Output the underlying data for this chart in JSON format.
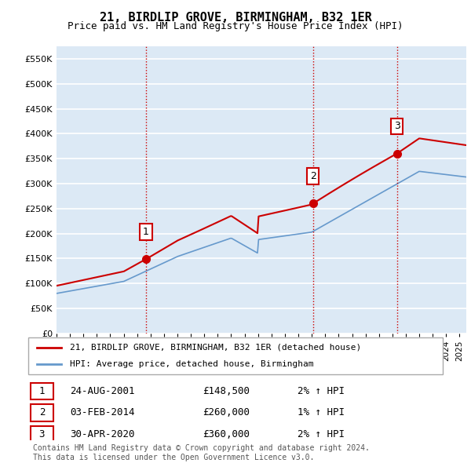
{
  "title": "21, BIRDLIP GROVE, BIRMINGHAM, B32 1ER",
  "subtitle": "Price paid vs. HM Land Registry's House Price Index (HPI)",
  "xlabel": "",
  "ylabel": "",
  "ylim": [
    0,
    575000
  ],
  "yticks": [
    0,
    50000,
    100000,
    150000,
    200000,
    250000,
    300000,
    350000,
    400000,
    450000,
    500000,
    550000
  ],
  "bg_color": "#dce9f5",
  "plot_bg": "#dce9f5",
  "grid_color": "#ffffff",
  "red_line_color": "#cc0000",
  "blue_line_color": "#6699cc",
  "sale_marker_color": "#cc0000",
  "sale_points": [
    {
      "date_num": 2001.65,
      "value": 148500,
      "label": "1"
    },
    {
      "date_num": 2014.09,
      "value": 260000,
      "label": "2"
    },
    {
      "date_num": 2020.33,
      "value": 360000,
      "label": "3"
    }
  ],
  "legend_entries": [
    {
      "color": "#cc0000",
      "label": "21, BIRDLIP GROVE, BIRMINGHAM, B32 1ER (detached house)"
    },
    {
      "color": "#6699cc",
      "label": "HPI: Average price, detached house, Birmingham"
    }
  ],
  "table_rows": [
    {
      "num": "1",
      "date": "24-AUG-2001",
      "price": "£148,500",
      "change": "2% ↑ HPI"
    },
    {
      "num": "2",
      "date": "03-FEB-2014",
      "price": "£260,000",
      "change": "1% ↑ HPI"
    },
    {
      "num": "3",
      "date": "30-APR-2020",
      "price": "£360,000",
      "change": "2% ↑ HPI"
    }
  ],
  "footer": "Contains HM Land Registry data © Crown copyright and database right 2024.\nThis data is licensed under the Open Government Licence v3.0.",
  "vline_color": "#cc0000",
  "vline_style": ":",
  "xmin": 1995,
  "xmax": 2025.5
}
